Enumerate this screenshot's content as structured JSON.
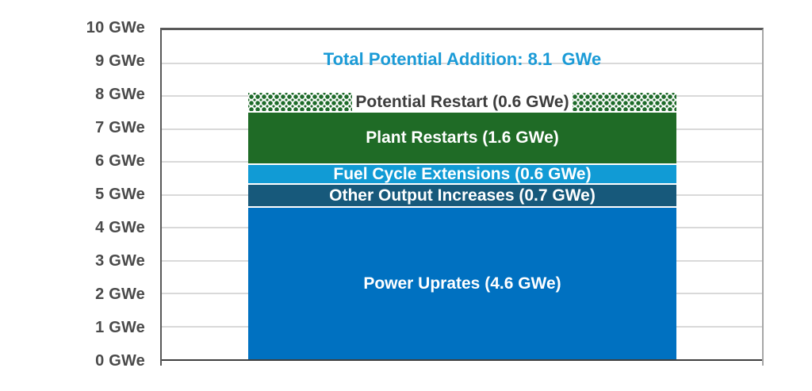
{
  "chart_data": {
    "type": "bar",
    "title": "Total Potential Addition: 8.1  GWe",
    "unit": "GWe",
    "ylim": [
      0,
      10
    ],
    "grid": true,
    "legend_position": "none",
    "y_axis": {
      "tick_values": [
        0,
        1,
        2,
        3,
        4,
        5,
        6,
        7,
        8,
        9,
        10
      ],
      "tick_labels": [
        "0 GWe",
        "1 GWe",
        "2 GWe",
        "3 GWe",
        "4 GWe",
        "5 GWe",
        "6 GWe",
        "7 GWe",
        "8 GWe",
        "9 GWe",
        "10 GWe"
      ]
    },
    "bar": {
      "total": 8.1,
      "segments_bottom_to_top": [
        {
          "name": "power-uprates",
          "label": "Power Uprates (4.6 GWe)",
          "value": 4.6,
          "fill": "#0071C1",
          "text_color": "#FFFFFF",
          "style": "solid"
        },
        {
          "name": "other-output-increases",
          "label": "Other Output Increases (0.7 GWe)",
          "value": 0.7,
          "fill": "#17597B",
          "text_color": "#FFFFFF",
          "style": "solid"
        },
        {
          "name": "fuel-cycle-extensions",
          "label": "Fuel Cycle Extensions (0.6 GWe)",
          "value": 0.6,
          "fill": "#119BD5",
          "text_color": "#FFFFFF",
          "style": "solid"
        },
        {
          "name": "plant-restarts",
          "label": "Plant Restarts (1.6 GWe)",
          "value": 1.6,
          "fill": "#1F6B26",
          "text_color": "#FFFFFF",
          "style": "solid"
        },
        {
          "name": "potential-restart",
          "label": "Potential Restart (0.6 GWe)",
          "value": 0.6,
          "fill": "#1E6B2A",
          "text_color": "#3D3D3D",
          "style": "diamond-dot-pattern",
          "label_background": "#FFFFFF"
        }
      ]
    },
    "colors": {
      "title": "#1B9BD7",
      "axis_label": "#4A4A4A",
      "gridline": "#D9D9D9",
      "plot_border_dark": "#595959",
      "plot_border_right": "#A6A6A6",
      "axis_bottom": "#404040",
      "background": "#FFFFFF"
    }
  }
}
